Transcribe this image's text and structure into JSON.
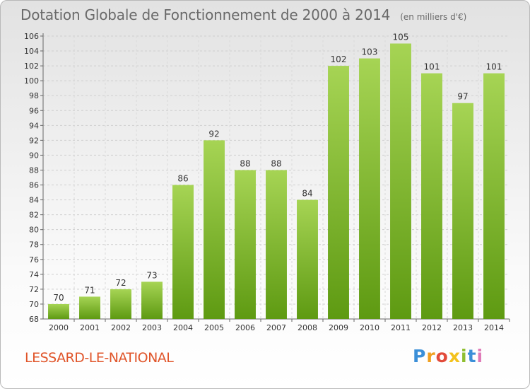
{
  "header": {
    "title": "Dotation Globale de Fonctionnement de 2000 à 2014",
    "subtitle": "(en milliers d'€)"
  },
  "footer": {
    "commune": "LESSARD-LE-NATIONAL",
    "logo_text": [
      "P",
      "r",
      "o",
      "x",
      "i",
      "t",
      "i"
    ]
  },
  "chart_data": {
    "type": "bar",
    "title": "Dotation Globale de Fonctionnement de 2000 à 2014",
    "subtitle": "(en milliers d'€)",
    "categories": [
      "2000",
      "2001",
      "2002",
      "2003",
      "2004",
      "2005",
      "2006",
      "2007",
      "2008",
      "2009",
      "2010",
      "2011",
      "2012",
      "2013",
      "2014"
    ],
    "values": [
      70,
      71,
      72,
      73,
      86,
      92,
      88,
      88,
      84,
      102,
      103,
      105,
      101,
      97,
      101
    ],
    "ylim": [
      68,
      106
    ],
    "yticks": [
      68,
      70,
      72,
      74,
      76,
      78,
      80,
      82,
      84,
      86,
      88,
      90,
      92,
      94,
      96,
      98,
      100,
      102,
      104,
      106
    ],
    "xlabel": "",
    "ylabel": "",
    "grid": true,
    "bar_color_top": "#a6d454",
    "bar_color_bottom": "#5e9a12"
  }
}
